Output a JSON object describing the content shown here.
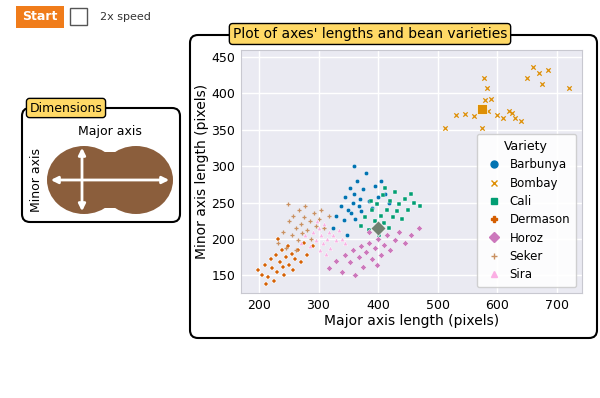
{
  "controls": {
    "button": "Start",
    "checkbox": "2x speed"
  },
  "diagram": {
    "title": "Dimensions",
    "major_label": "Major axis",
    "minor_label": "Minor axis"
  },
  "chart_data": {
    "type": "scatter",
    "title": "Plot of axes' lengths and bean varieties",
    "x_label": "Major axis length (pixels)",
    "y_label": "Minor axis length (pixels)",
    "xlim": [
      170,
      742
    ],
    "ylim": [
      126,
      459
    ],
    "xticks": [
      200,
      300,
      400,
      500,
      600,
      700
    ],
    "yticks": [
      150,
      200,
      250,
      300,
      350,
      400,
      450
    ],
    "grid": true,
    "legend": "lower right",
    "legend_title": "Variety",
    "series": [
      {
        "name": "Barbunya",
        "color": "#0173b2",
        "marker": "circle",
        "x": [
          325,
          330,
          338,
          342,
          345,
          350,
          352,
          355,
          358,
          360,
          362,
          365,
          368,
          370,
          372,
          375,
          380,
          385,
          390,
          395,
          400,
          405,
          412,
          418,
          348,
          360
        ],
        "y": [
          215,
          232,
          245,
          226,
          258,
          240,
          270,
          235,
          250,
          262,
          228,
          280,
          245,
          255,
          238,
          268,
          290,
          252,
          242,
          272,
          258,
          280,
          262,
          250,
          205,
          300
        ]
      },
      {
        "name": "Bombay",
        "color": "#de8f05",
        "marker": "x",
        "x": [
          512,
          530,
          545,
          560,
          575,
          580,
          585,
          590,
          600,
          610,
          620,
          625,
          630,
          640,
          650,
          660,
          670,
          675,
          685,
          720,
          578,
          583
        ],
        "y": [
          352,
          370,
          371,
          369,
          352,
          390,
          375,
          392,
          370,
          366,
          376,
          372,
          366,
          362,
          420,
          436,
          428,
          412,
          432,
          407,
          420,
          407
        ]
      },
      {
        "name": "Cali",
        "color": "#029e73",
        "marker": "square",
        "x": [
          372,
          378,
          385,
          390,
          395,
          398,
          402,
          405,
          408,
          410,
          415,
          418,
          420,
          425,
          428,
          432,
          435,
          440,
          445,
          450,
          455,
          460,
          470,
          388,
          412
        ],
        "y": [
          218,
          230,
          212,
          240,
          225,
          248,
          205,
          232,
          260,
          222,
          240,
          215,
          252,
          230,
          265,
          238,
          248,
          228,
          255,
          240,
          262,
          250,
          245,
          252,
          270
        ]
      },
      {
        "name": "Dermason",
        "color": "#d55e00",
        "marker": "plus_filled",
        "x": [
          198,
          205,
          210,
          215,
          220,
          222,
          225,
          228,
          230,
          235,
          238,
          240,
          242,
          245,
          248,
          250,
          255,
          258,
          260,
          265,
          270,
          275,
          280,
          290,
          212,
          232
        ],
        "y": [
          158,
          150,
          165,
          148,
          172,
          160,
          142,
          178,
          155,
          168,
          185,
          162,
          150,
          175,
          190,
          165,
          180,
          158,
          172,
          185,
          168,
          195,
          178,
          190,
          138,
          200
        ]
      },
      {
        "name": "Horoz",
        "color": "#cc78bc",
        "marker": "diamond",
        "x": [
          318,
          330,
          340,
          345,
          352,
          358,
          362,
          368,
          372,
          375,
          380,
          385,
          390,
          395,
          400,
          405,
          410,
          415,
          420,
          428,
          435,
          445,
          455,
          468,
          385,
          398
        ],
        "y": [
          160,
          170,
          155,
          178,
          168,
          185,
          150,
          175,
          190,
          162,
          182,
          195,
          172,
          188,
          200,
          178,
          192,
          205,
          185,
          198,
          210,
          195,
          205,
          215,
          210,
          165
        ]
      },
      {
        "name": "Seker",
        "color": "#ca9161",
        "marker": "plus",
        "x": [
          232,
          240,
          245,
          250,
          255,
          258,
          262,
          265,
          268,
          270,
          272,
          275,
          278,
          280,
          285,
          288,
          292,
          295,
          300,
          305,
          310,
          318,
          248,
          262
        ],
        "y": [
          195,
          210,
          188,
          225,
          205,
          232,
          215,
          198,
          240,
          220,
          208,
          230,
          245,
          212,
          225,
          200,
          235,
          218,
          228,
          240,
          215,
          232,
          248,
          185
        ]
      },
      {
        "name": "Sira",
        "color": "#fbafe4",
        "marker": "triangle",
        "x": [
          270,
          278,
          285,
          290,
          295,
          300,
          302,
          305,
          308,
          310,
          315,
          318,
          320,
          325,
          330,
          335,
          340,
          345,
          298,
          312
        ],
        "y": [
          195,
          205,
          190,
          210,
          198,
          215,
          185,
          205,
          195,
          220,
          200,
          210,
          188,
          205,
          198,
          212,
          200,
          195,
          225,
          180
        ]
      }
    ],
    "highlights": [
      {
        "x": 575,
        "y": 378,
        "color": "#de8f05",
        "marker": "square"
      },
      {
        "x": 400,
        "y": 215,
        "color": "#708070",
        "marker": "diamond"
      }
    ]
  }
}
